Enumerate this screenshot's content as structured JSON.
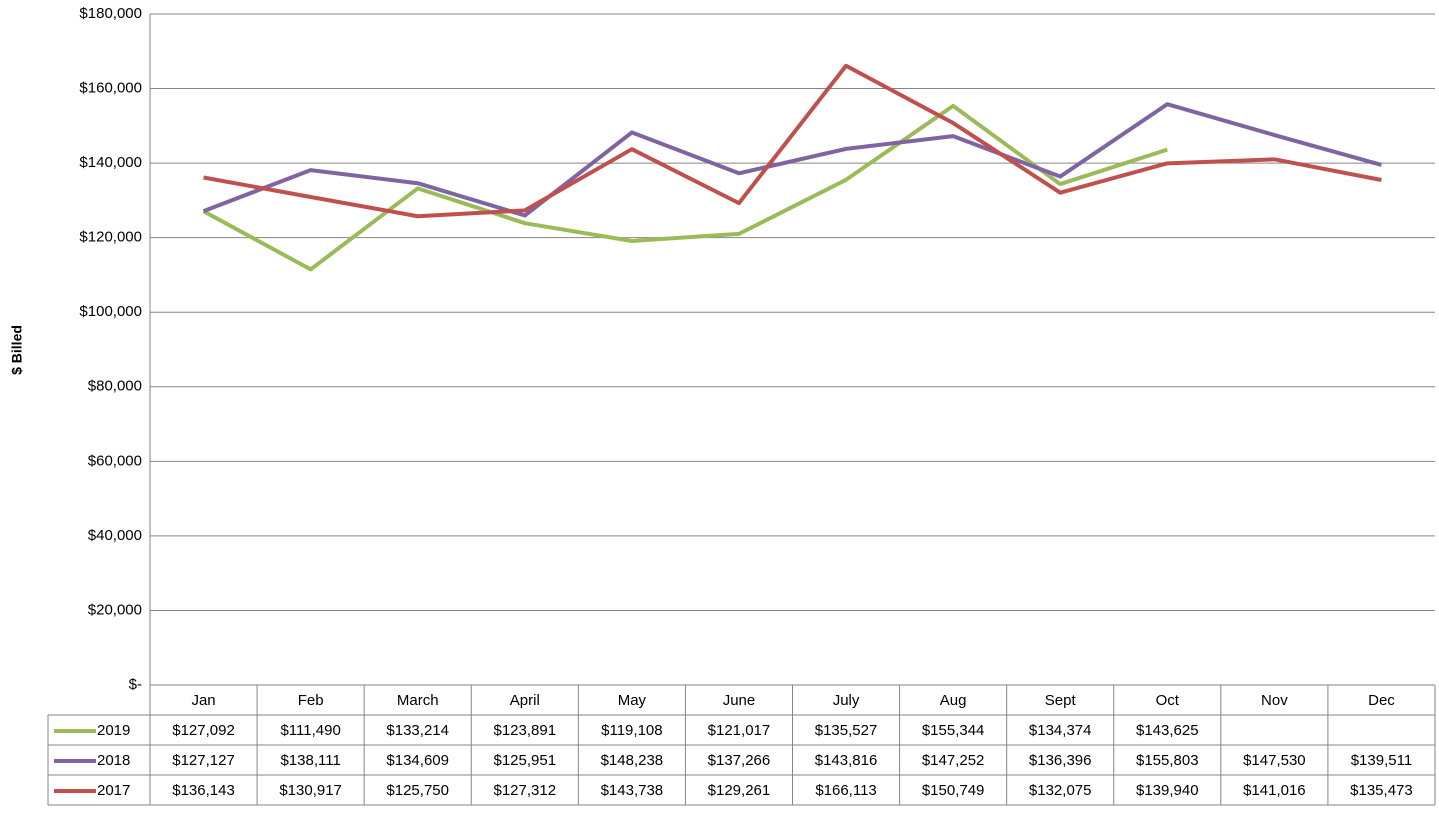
{
  "chart_data": {
    "type": "line",
    "y_label": "$ Billed",
    "categories": [
      "Jan",
      "Feb",
      "March",
      "April",
      "May",
      "June",
      "July",
      "Aug",
      "Sept",
      "Oct",
      "Nov",
      "Dec"
    ],
    "series": [
      {
        "name": "2019",
        "color": "#9bbb59",
        "values": [
          127092,
          111490,
          133214,
          123891,
          119108,
          121017,
          135527,
          155344,
          134374,
          143625,
          null,
          null
        ],
        "value_labels": [
          "$127,092",
          "$111,490",
          "$133,214",
          "$123,891",
          "$119,108",
          "$121,017",
          "$135,527",
          "$155,344",
          "$134,374",
          "$143,625",
          null,
          null
        ]
      },
      {
        "name": "2018",
        "color": "#8064a2",
        "values": [
          127127,
          138111,
          134609,
          125951,
          148238,
          137266,
          143816,
          147252,
          136396,
          155803,
          147530,
          139511
        ],
        "value_labels": [
          "$127,127",
          "$138,111",
          "$134,609",
          "$125,951",
          "$148,238",
          "$137,266",
          "$143,816",
          "$147,252",
          "$136,396",
          "$155,803",
          "$147,530",
          "$139,511"
        ]
      },
      {
        "name": "2017",
        "color": "#c0504d",
        "values": [
          136143,
          130917,
          125750,
          127312,
          143738,
          129261,
          166113,
          150749,
          132075,
          139940,
          141016,
          135473
        ],
        "value_labels": [
          "$136,143",
          "$130,917",
          "$125,750",
          "$127,312",
          "$143,738",
          "$129,261",
          "$166,113",
          "$150,749",
          "$132,075",
          "$139,940",
          "$141,016",
          "$135,473"
        ]
      }
    ],
    "ylim": [
      0,
      180000
    ],
    "yticks": [
      {
        "value": 0,
        "label": "$-"
      },
      {
        "value": 20000,
        "label": "$20,000"
      },
      {
        "value": 40000,
        "label": "$40,000"
      },
      {
        "value": 60000,
        "label": "$60,000"
      },
      {
        "value": 80000,
        "label": "$80,000"
      },
      {
        "value": 100000,
        "label": "$100,000"
      },
      {
        "value": 120000,
        "label": "$120,000"
      },
      {
        "value": 140000,
        "label": "$140,000"
      },
      {
        "value": 160000,
        "label": "$160,000"
      },
      {
        "value": 180000,
        "label": "$180,000"
      }
    ],
    "grid": true
  }
}
